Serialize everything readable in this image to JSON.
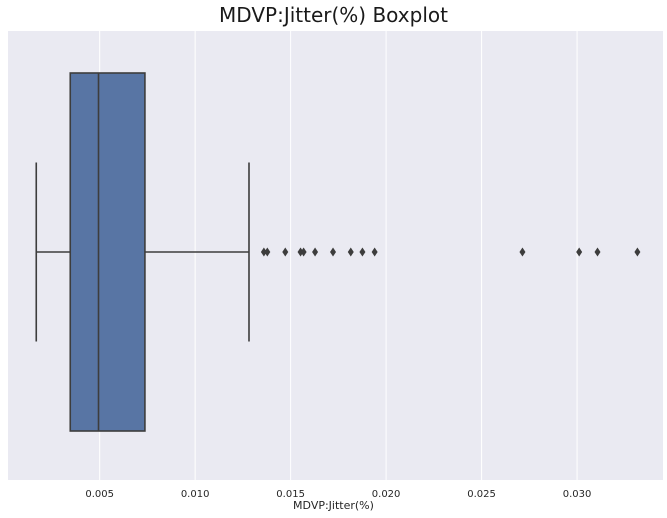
{
  "chart_data": {
    "type": "boxplot",
    "title": "MDVP:Jitter(%) Boxplot",
    "xlabel": "MDVP:Jitter(%)",
    "ylabel": "",
    "orientation": "horizontal",
    "xlim": [
      0.0002,
      0.0345
    ],
    "x_ticks": [
      0.005,
      0.01,
      0.015,
      0.02,
      0.025,
      0.03
    ],
    "x_tick_labels": [
      "0.005",
      "0.010",
      "0.015",
      "0.020",
      "0.025",
      "0.030"
    ],
    "grid": true,
    "stats": {
      "whisker_low": 0.00168,
      "q1": 0.00346,
      "median": 0.00494,
      "q3": 0.00737,
      "whisker_high": 0.01282
    },
    "outliers": [
      0.0136,
      0.01378,
      0.01472,
      0.01552,
      0.01568,
      0.01628,
      0.01722,
      0.01815,
      0.01876,
      0.0194,
      0.02714,
      0.03011,
      0.03107,
      0.03316
    ]
  },
  "colors": {
    "background": "#eaeaf2",
    "grid": "#ffffff",
    "box_fill": "#5875a4",
    "line": "#3d3d3d",
    "outlier": "#3d3d3d"
  }
}
